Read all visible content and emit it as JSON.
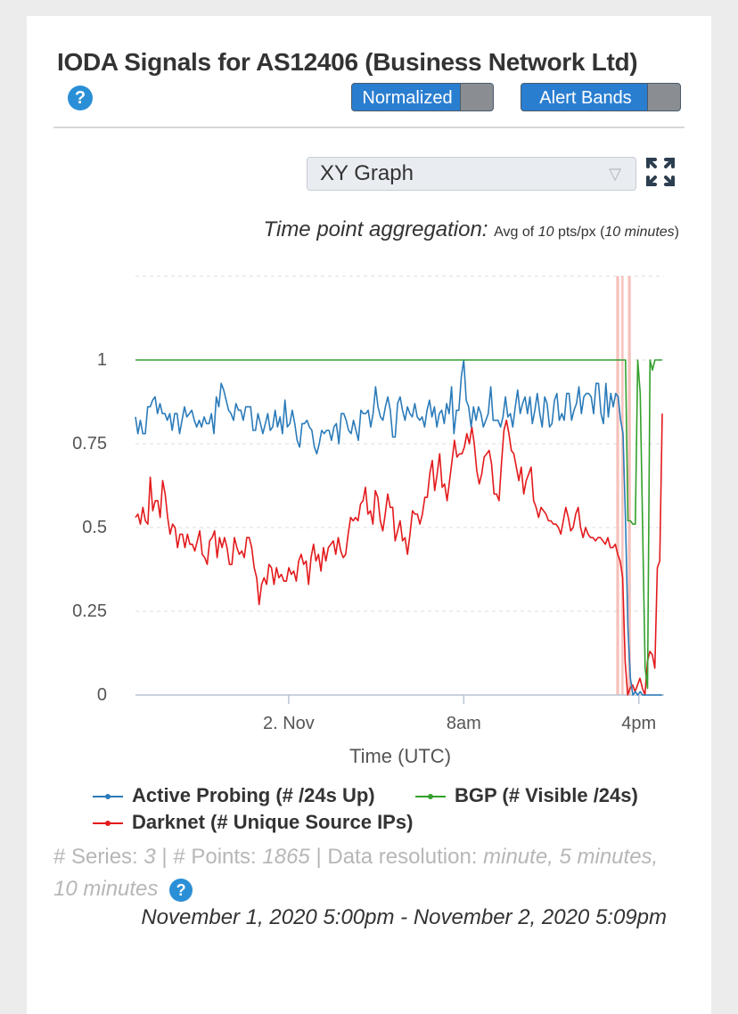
{
  "header": {
    "title": "IODA Signals for AS12406 (Business Network Ltd)",
    "help_glyph": "?",
    "normalized_label": "Normalized",
    "alert_bands_label": "Alert Bands"
  },
  "controls": {
    "graph_type": "XY Graph",
    "aggregation_label": "Time point aggregation:",
    "aggregation_prefix": "Avg of",
    "aggregation_value": "10",
    "aggregation_unit": "pts/px (",
    "aggregation_interval": "10 minutes",
    "aggregation_suffix": ")"
  },
  "colors": {
    "active_probing": "#2b7bb9",
    "bgp": "#33a02c",
    "darknet": "#e31a1c",
    "alert_band": "#f4b6b0",
    "alert_band_light": "#f6dcc0"
  },
  "chart_data": {
    "type": "line",
    "xlabel": "Time (UTC)",
    "x_ticks": [
      "2. Nov",
      "8am",
      "4pm"
    ],
    "y_ticks": [
      "0",
      "0.25",
      "0.5",
      "0.75",
      "1"
    ],
    "ylim": [
      0,
      1.25
    ],
    "grid": "dashed horizontal",
    "legend_position": "bottom",
    "x_start": "2020-11-01 17:00",
    "x_end": "2020-11-02 17:09",
    "tick_times": [
      "2020-11-02 00:00",
      "2020-11-02 08:00",
      "2020-11-02 16:00"
    ],
    "alert_bands": [
      [
        "2020-11-02 14:58",
        "2020-11-02 15:06"
      ],
      [
        "2020-11-02 15:12",
        "2020-11-02 15:18"
      ],
      [
        "2020-11-02 15:30",
        "2020-11-02 15:38"
      ]
    ],
    "series": [
      {
        "name": "Active Probing (# /24s Up)",
        "color": "#2b7bb9",
        "values": [
          0.83,
          0.78,
          0.82,
          0.78,
          0.78,
          0.86,
          0.86,
          0.88,
          0.89,
          0.84,
          0.87,
          0.84,
          0.84,
          0.82,
          0.84,
          0.79,
          0.84,
          0.84,
          0.78,
          0.82,
          0.86,
          0.83,
          0.84,
          0.85,
          0.82,
          0.8,
          0.82,
          0.8,
          0.83,
          0.81,
          0.81,
          0.84,
          0.78,
          0.89,
          0.86,
          0.93,
          0.91,
          0.88,
          0.85,
          0.84,
          0.82,
          0.87,
          0.85,
          0.85,
          0.82,
          0.86,
          0.86,
          0.86,
          0.79,
          0.79,
          0.84,
          0.81,
          0.78,
          0.81,
          0.84,
          0.79,
          0.8,
          0.85,
          0.8,
          0.83,
          0.78,
          0.88,
          0.8,
          0.81,
          0.85,
          0.81,
          0.76,
          0.74,
          0.81,
          0.81,
          0.82,
          0.8,
          0.79,
          0.74,
          0.72,
          0.75,
          0.79,
          0.78,
          0.79,
          0.79,
          0.76,
          0.8,
          0.81,
          0.75,
          0.84,
          0.84,
          0.82,
          0.79,
          0.78,
          0.82,
          0.79,
          0.76,
          0.85,
          0.84,
          0.84,
          0.85,
          0.8,
          0.84,
          0.92,
          0.86,
          0.83,
          0.82,
          0.86,
          0.89,
          0.85,
          0.77,
          0.77,
          0.87,
          0.89,
          0.85,
          0.82,
          0.86,
          0.84,
          0.83,
          0.87,
          0.83,
          0.82,
          0.83,
          0.8,
          0.85,
          0.88,
          0.83,
          0.86,
          0.8,
          0.84,
          0.85,
          0.81,
          0.87,
          0.84,
          0.92,
          0.78,
          0.85,
          0.85,
          0.95,
          1.0,
          0.88,
          0.86,
          0.8,
          0.86,
          0.82,
          0.86,
          0.84,
          0.8,
          0.82,
          0.84,
          0.92,
          0.82,
          0.82,
          0.82,
          0.8,
          0.83,
          0.89,
          0.83,
          0.84,
          0.8,
          0.86,
          0.91,
          0.84,
          0.87,
          0.89,
          0.84,
          0.89,
          0.81,
          0.85,
          0.9,
          0.84,
          0.8,
          0.89,
          0.87,
          0.8,
          0.81,
          0.88,
          0.9,
          0.82,
          0.84,
          0.82,
          0.9,
          0.9,
          0.82,
          0.85,
          0.87,
          0.92,
          0.84,
          0.89,
          0.9,
          0.9,
          0.89,
          0.84,
          0.93,
          0.93,
          0.84,
          0.81,
          0.93,
          0.83,
          0.9,
          0.86,
          0.9,
          0.89,
          0.82,
          0.78,
          0.52,
          0.2,
          0.05,
          0.0,
          0.01,
          0.0,
          0.01,
          0.0,
          0.0,
          0.0,
          0.0,
          0.0,
          0.0,
          0.0,
          0.0,
          0.0
        ]
      },
      {
        "name": "BGP (# Visible /24s)",
        "color": "#33a02c",
        "values": [
          1,
          1,
          1,
          1,
          1,
          1,
          1,
          1,
          1,
          1,
          1,
          1,
          1,
          1,
          1,
          1,
          1,
          1,
          1,
          1,
          1,
          1,
          1,
          1,
          1,
          1,
          1,
          1,
          1,
          1,
          1,
          1,
          1,
          1,
          1,
          1,
          1,
          1,
          1,
          1,
          1,
          1,
          1,
          1,
          1,
          1,
          1,
          1,
          1,
          1,
          1,
          1,
          1,
          1,
          1,
          1,
          1,
          1,
          1,
          1,
          1,
          1,
          1,
          1,
          1,
          1,
          1,
          1,
          1,
          1,
          1,
          1,
          1,
          1,
          1,
          1,
          1,
          1,
          1,
          1,
          1,
          1,
          1,
          1,
          1,
          1,
          1,
          1,
          1,
          1,
          1,
          1,
          1,
          1,
          1,
          1,
          1,
          1,
          1,
          1,
          1,
          1,
          1,
          1,
          1,
          1,
          1,
          1,
          1,
          1,
          1,
          1,
          1,
          1,
          1,
          1,
          1,
          1,
          1,
          1,
          1,
          1,
          1,
          1,
          1,
          1,
          1,
          1,
          1,
          1,
          1,
          1,
          1,
          1,
          1,
          1,
          1,
          1,
          1,
          1,
          1,
          1,
          1,
          1,
          1,
          1,
          1,
          1,
          1,
          1,
          1,
          1,
          1,
          1,
          1,
          1,
          1,
          1,
          1,
          1,
          1,
          1,
          1,
          1,
          1,
          1,
          1,
          1,
          1,
          1,
          1,
          1,
          1,
          1,
          1,
          1,
          1,
          1,
          1,
          1,
          1,
          1,
          1,
          1,
          1,
          1,
          1,
          1,
          1,
          1,
          1,
          1,
          1,
          1,
          1,
          1,
          1,
          1,
          1,
          1,
          1,
          0.52,
          0.52,
          0.51,
          0.51,
          1.0,
          0.9,
          0.5,
          0.08,
          0.02,
          1.0,
          0.97,
          1.0,
          1.0,
          1.0,
          1.0
        ]
      },
      {
        "name": "Darknet (# Unique Source IPs)",
        "color": "#e31a1c",
        "values": [
          0.53,
          0.54,
          0.51,
          0.56,
          0.52,
          0.51,
          0.65,
          0.55,
          0.58,
          0.58,
          0.53,
          0.64,
          0.6,
          0.53,
          0.48,
          0.51,
          0.5,
          0.44,
          0.48,
          0.48,
          0.44,
          0.48,
          0.45,
          0.45,
          0.43,
          0.46,
          0.49,
          0.42,
          0.41,
          0.39,
          0.46,
          0.47,
          0.49,
          0.41,
          0.47,
          0.44,
          0.47,
          0.44,
          0.39,
          0.39,
          0.47,
          0.44,
          0.42,
          0.43,
          0.41,
          0.47,
          0.47,
          0.44,
          0.38,
          0.35,
          0.27,
          0.33,
          0.35,
          0.33,
          0.39,
          0.38,
          0.33,
          0.38,
          0.35,
          0.36,
          0.34,
          0.34,
          0.38,
          0.36,
          0.37,
          0.34,
          0.4,
          0.42,
          0.39,
          0.4,
          0.33,
          0.41,
          0.45,
          0.4,
          0.42,
          0.37,
          0.44,
          0.4,
          0.44,
          0.45,
          0.46,
          0.42,
          0.47,
          0.43,
          0.41,
          0.42,
          0.48,
          0.53,
          0.52,
          0.53,
          0.52,
          0.57,
          0.58,
          0.62,
          0.54,
          0.55,
          0.51,
          0.61,
          0.59,
          0.52,
          0.49,
          0.54,
          0.6,
          0.56,
          0.56,
          0.46,
          0.49,
          0.52,
          0.46,
          0.47,
          0.42,
          0.48,
          0.55,
          0.54,
          0.54,
          0.51,
          0.54,
          0.59,
          0.59,
          0.66,
          0.7,
          0.61,
          0.66,
          0.72,
          0.62,
          0.63,
          0.58,
          0.64,
          0.7,
          0.76,
          0.71,
          0.72,
          0.72,
          0.74,
          0.78,
          0.75,
          0.8,
          0.75,
          0.67,
          0.63,
          0.66,
          0.71,
          0.72,
          0.73,
          0.69,
          0.6,
          0.6,
          0.58,
          0.69,
          0.79,
          0.82,
          0.78,
          0.73,
          0.72,
          0.68,
          0.64,
          0.68,
          0.6,
          0.64,
          0.66,
          0.68,
          0.58,
          0.56,
          0.53,
          0.56,
          0.55,
          0.54,
          0.52,
          0.52,
          0.51,
          0.51,
          0.5,
          0.48,
          0.52,
          0.56,
          0.53,
          0.49,
          0.5,
          0.54,
          0.56,
          0.5,
          0.47,
          0.5,
          0.48,
          0.47,
          0.47,
          0.46,
          0.47,
          0.47,
          0.46,
          0.45,
          0.47,
          0.44,
          0.44,
          0.45,
          0.42,
          0.4,
          0.35,
          0.1,
          0.0,
          0.02,
          0.03,
          0.01,
          0.03,
          0.05,
          0.02,
          0.0,
          0.1,
          0.13,
          0.12,
          0.08,
          0.38,
          0.4,
          0.84
        ]
      }
    ]
  },
  "legend": {
    "active_probing": "Active Probing (# /24s Up)",
    "bgp": "BGP (# Visible /24s)",
    "darknet": "Darknet (# Unique Source IPs)"
  },
  "info": {
    "series_label": "# Series:",
    "series_count": "3",
    "points_label": "# Points:",
    "points_count": "1865",
    "resolution_label": "Data resolution:",
    "resolution_value": "minute, 5 minutes, 10 minutes",
    "help_glyph": "?",
    "date_range": "November 1, 2020 5:00pm - November 2, 2020 5:09pm"
  }
}
